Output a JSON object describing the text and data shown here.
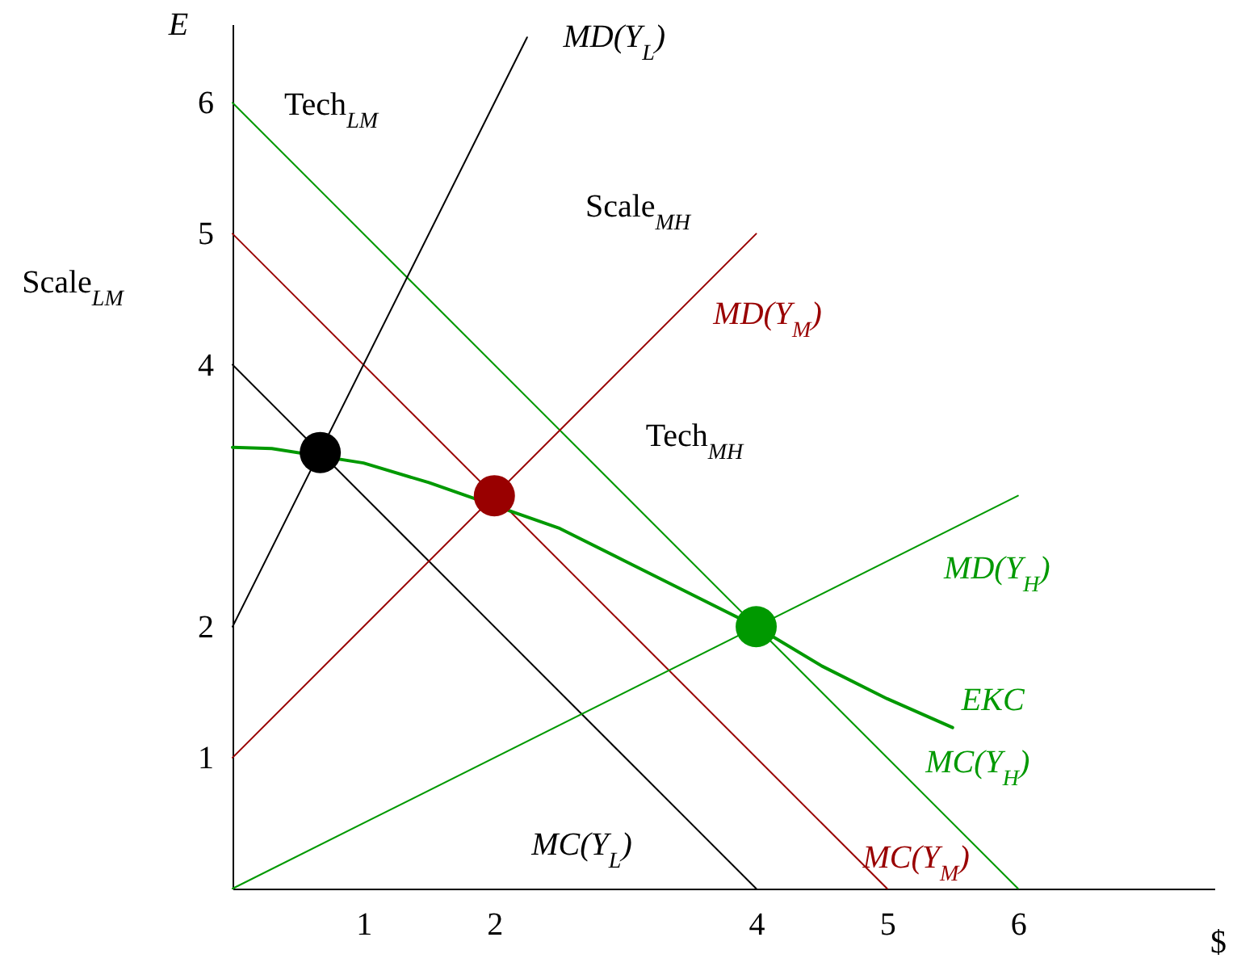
{
  "chart_data": {
    "type": "line",
    "xlabel": "$",
    "ylabel": "E",
    "xlim": [
      0,
      7.5
    ],
    "ylim": [
      0,
      6.6
    ],
    "xticks": [
      1,
      2,
      4,
      5,
      6
    ],
    "yticks": [
      1,
      2,
      4,
      5,
      6
    ],
    "grid": false,
    "series": [
      {
        "name": "MC(Y$_{L}$)",
        "color": "#000000",
        "x": [
          0,
          4
        ],
        "values": [
          4,
          0
        ]
      },
      {
        "name": "MC(Y$_{M}$)",
        "color": "#990000",
        "x": [
          0,
          5
        ],
        "values": [
          5,
          0
        ]
      },
      {
        "name": "MC(Y$_{H}$)",
        "color": "#009900",
        "x": [
          0,
          6
        ],
        "values": [
          6,
          0
        ]
      },
      {
        "name": "MD(Y$_{L}$)",
        "color": "#000000",
        "x": [
          0,
          2.25
        ],
        "values": [
          2,
          6.5
        ]
      },
      {
        "name": "MD(Y$_{M}$)",
        "color": "#990000",
        "x": [
          0,
          4
        ],
        "values": [
          1,
          5
        ]
      },
      {
        "name": "MD(Y$_{H}$)",
        "color": "#009900",
        "x": [
          0,
          6
        ],
        "values": [
          0,
          3
        ]
      },
      {
        "name": "EKC",
        "color": "#009900",
        "x": [
          0,
          0.3,
          1,
          1.5,
          2.5,
          3,
          3.5,
          4,
          4.5,
          5,
          5.5
        ],
        "values": [
          3.37,
          3.36,
          3.25,
          3.1,
          2.75,
          2.5,
          2.25,
          2.0,
          1.7,
          1.45,
          1.23
        ]
      },
      {
        "type": "scatter",
        "x": [
          0.67,
          2,
          4
        ],
        "values": [
          3.33,
          3,
          2
        ],
        "colors": [
          "#000000",
          "#990000",
          "#009900"
        ]
      }
    ],
    "annotations": [
      "Tech$_{LM}$",
      "Scale$_{LM}$",
      "Scale$_{MH}$",
      "Tech$_{MH}$"
    ]
  }
}
